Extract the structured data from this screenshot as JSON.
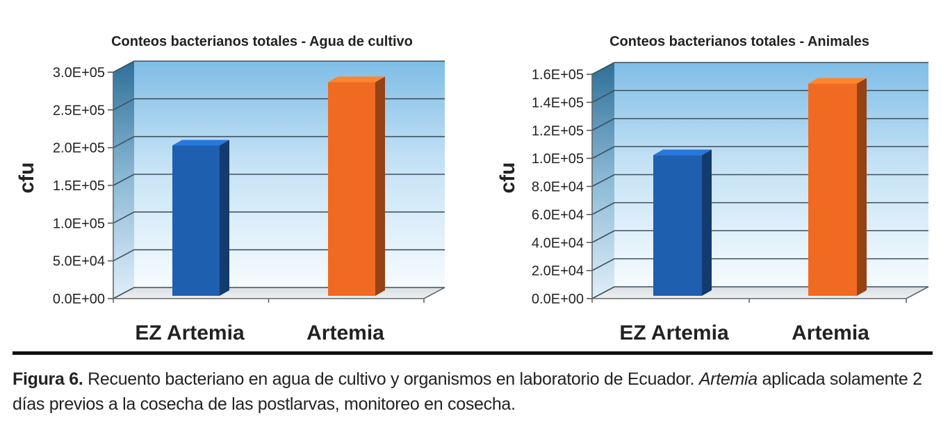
{
  "chart_data": [
    {
      "type": "bar",
      "title": "Conteos bacterianos totales - Agua de cultivo",
      "ylabel": "cfu",
      "xlabel": "",
      "categories": [
        "EZ Artemia",
        "Artemia"
      ],
      "values": [
        197000,
        281000
      ],
      "ylim": [
        0,
        300000
      ],
      "yticks": [
        "0.0E+00",
        "5.0E+04",
        "1.0E+05",
        "1.5E+05",
        "2.0E+05",
        "2.5E+05",
        "3.0E+05"
      ],
      "colors": [
        "#1f5fb0",
        "#f06a22"
      ],
      "grid": true
    },
    {
      "type": "bar",
      "title": "Conteos bacterianos totales - Animales",
      "ylabel": "cfu",
      "xlabel": "",
      "categories": [
        "EZ Artemia",
        "Artemia"
      ],
      "values": [
        99000,
        150000
      ],
      "ylim": [
        0,
        160000
      ],
      "yticks": [
        "0.0E+00",
        "2.0E+04",
        "4.0E+04",
        "6.0E+04",
        "8.0E+04",
        "1.0E+05",
        "1.2E+05",
        "1.4E+05",
        "1.6E+05"
      ],
      "colors": [
        "#1f5fb0",
        "#f06a22"
      ],
      "grid": true
    }
  ],
  "caption": {
    "label": "Figura 6.",
    "text_before": " Recuento bacteriano en agua de cultivo y organismos en laboratorio de Ecuador. ",
    "italic": "Artemia",
    "text_after": " aplicada solamente 2 días previos a la cosecha de las postlarvas, monitoreo en cosecha."
  }
}
